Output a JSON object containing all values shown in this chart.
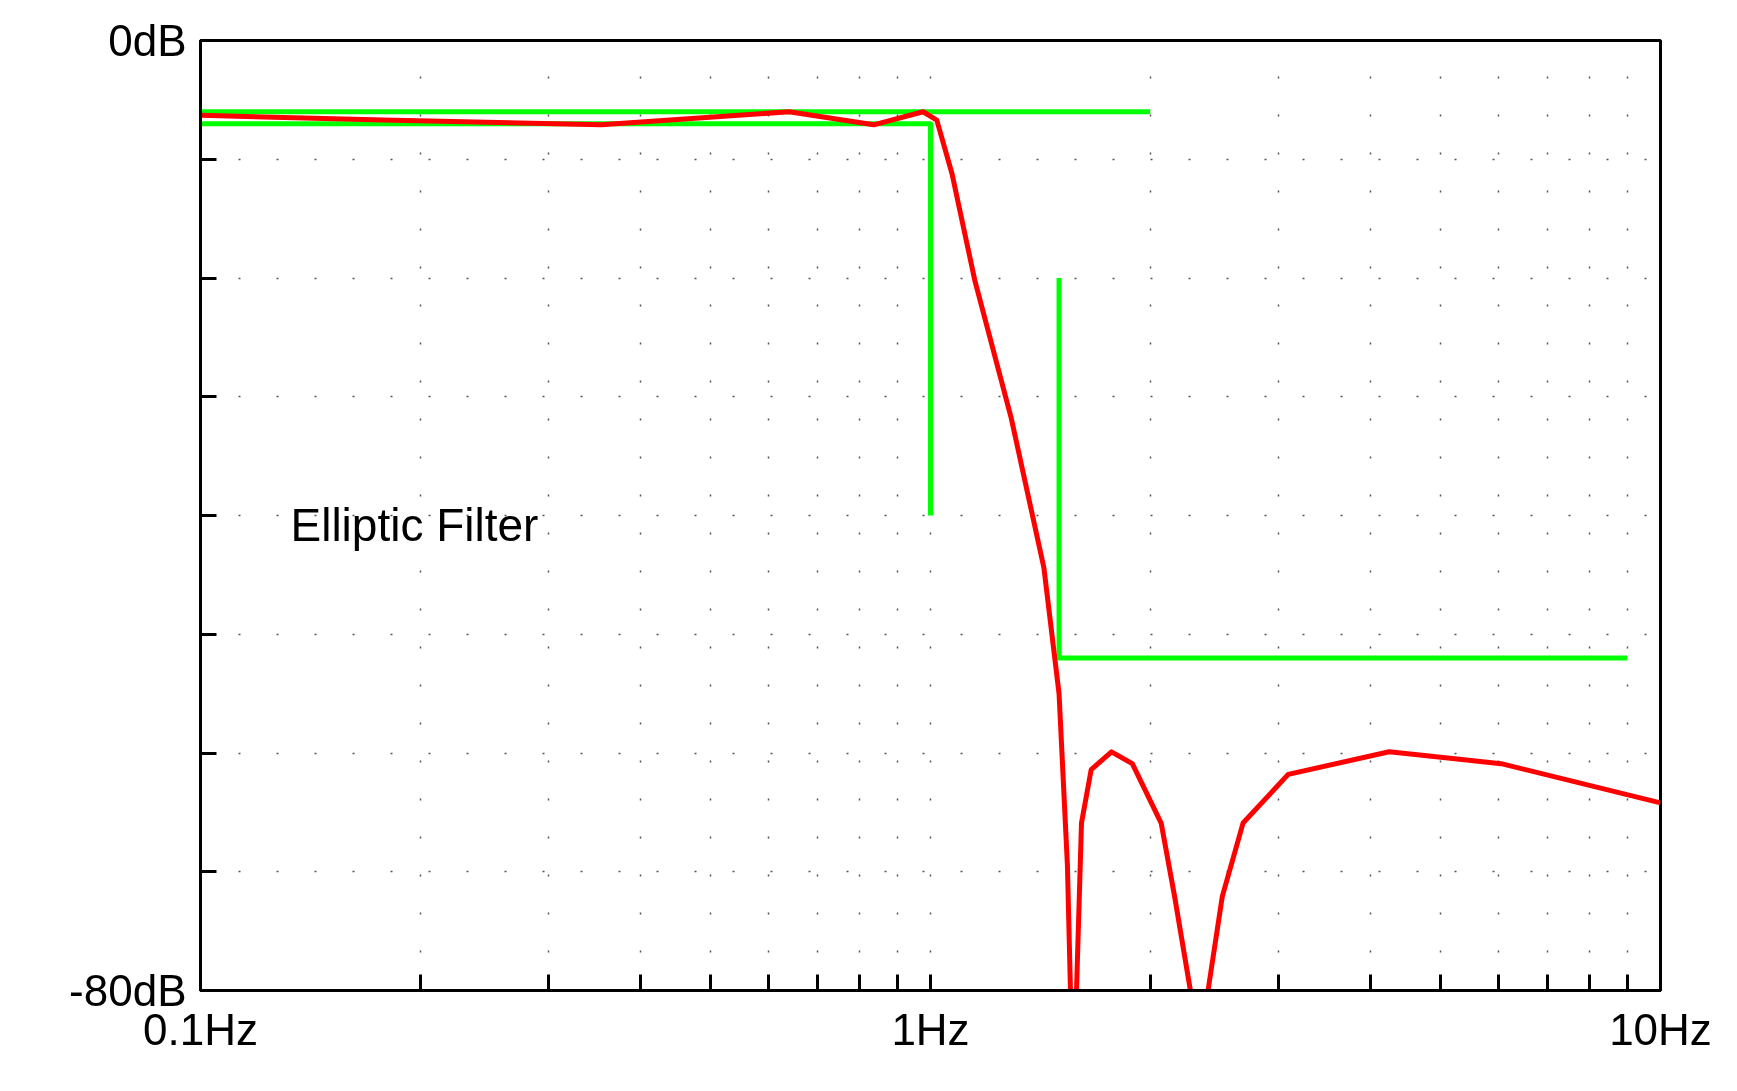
{
  "chart_data": {
    "type": "line",
    "annotations": [
      "Elliptic Filter"
    ],
    "log": "x",
    "grid": true,
    "line_style": "solid",
    "marker": "none",
    "xlim": [
      0.1,
      10
    ],
    "ylim": [
      -80,
      0
    ],
    "xticks": [
      {
        "value": 0.1,
        "label": "0.1Hz"
      },
      {
        "value": 0.2,
        "label": null
      },
      {
        "value": 0.3,
        "label": null
      },
      {
        "value": 0.4,
        "label": null
      },
      {
        "value": 0.5,
        "label": null
      },
      {
        "value": 0.6,
        "label": null
      },
      {
        "value": 0.7,
        "label": null
      },
      {
        "value": 0.8,
        "label": null
      },
      {
        "value": 0.9,
        "label": null
      },
      {
        "value": 1,
        "label": "1Hz"
      },
      {
        "value": 2,
        "label": null
      },
      {
        "value": 3,
        "label": null
      },
      {
        "value": 4,
        "label": null
      },
      {
        "value": 5,
        "label": null
      },
      {
        "value": 6,
        "label": null
      },
      {
        "value": 7,
        "label": null
      },
      {
        "value": 8,
        "label": null
      },
      {
        "value": 9,
        "label": null
      },
      {
        "value": 10,
        "label": "10Hz"
      }
    ],
    "yticks": [
      {
        "value": 0,
        "label": "0dB"
      },
      {
        "value": -10,
        "label": null
      },
      {
        "value": -20,
        "label": null
      },
      {
        "value": -30,
        "label": null
      },
      {
        "value": -40,
        "label": null
      },
      {
        "value": -50,
        "label": null
      },
      {
        "value": -60,
        "label": null
      },
      {
        "value": -70,
        "label": null
      },
      {
        "value": -80,
        "label": "-80dB"
      }
    ],
    "series": [
      {
        "color": "#00ff00",
        "x": [
          0.1,
          2
        ],
        "values": [
          -6,
          -6
        ]
      },
      {
        "color": "#00ff00",
        "x": [
          0.1,
          1,
          1
        ],
        "values": [
          -7,
          -7,
          -40
        ]
      },
      {
        "color": "#00ff00",
        "x": [
          1.5,
          1.5,
          9
        ],
        "values": [
          -20,
          -52,
          -52
        ]
      },
      {
        "color": "#ff0000",
        "x": [
          0.1,
          0.178,
          0.354,
          0.64,
          0.836,
          0.977,
          1.02,
          1.07,
          1.15,
          1.29,
          1.43,
          1.5,
          1.54,
          1.555,
          1.57,
          1.585,
          1.61,
          1.66,
          1.77,
          1.89,
          2.07,
          2.16,
          2.27,
          2.33,
          2.4,
          2.51,
          2.68,
          3.09,
          4.25,
          6.05,
          10
        ],
        "values": [
          -6.3,
          -6.7,
          -7.1,
          -6.0,
          -7.1,
          -6.0,
          -6.7,
          -11.2,
          -20.2,
          -31.8,
          -44.4,
          -55,
          -69.4,
          -80,
          null,
          -80,
          -65.9,
          -61.4,
          -59.9,
          -60.9,
          -65.9,
          -72.1,
          -80,
          null,
          -80,
          -72.1,
          -65.9,
          -61.8,
          -59.9,
          -60.9,
          -64.2
        ]
      }
    ]
  }
}
